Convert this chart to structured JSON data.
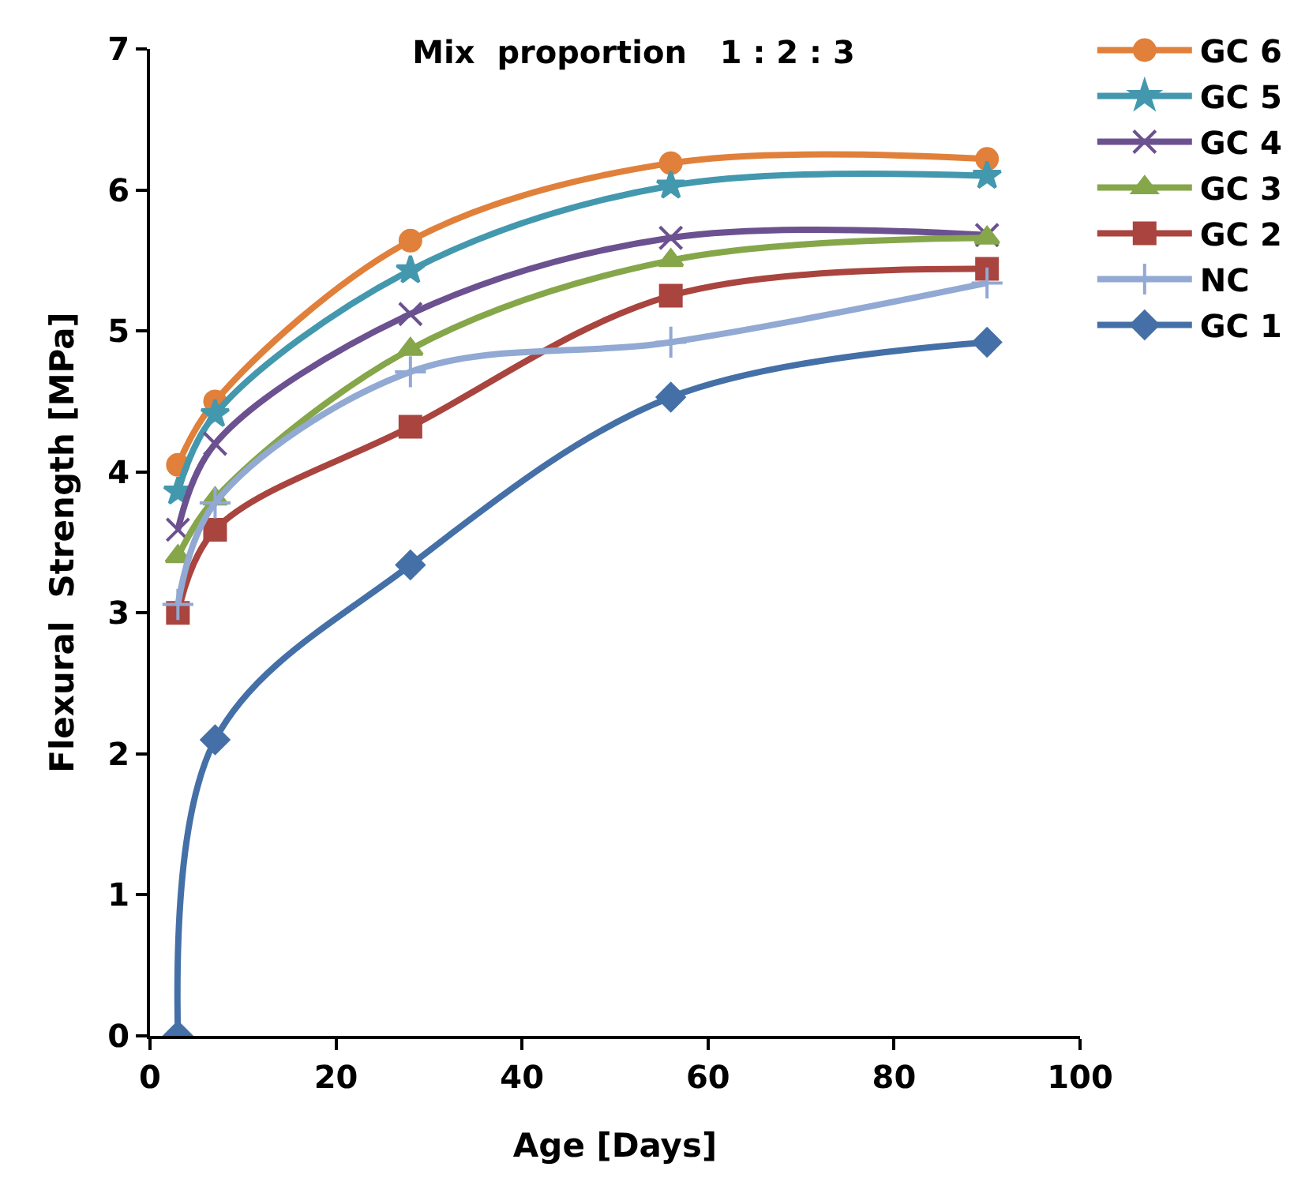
{
  "chart_data": {
    "type": "line",
    "title": "Mix  proportion   1 : 2 : 3",
    "xlabel": "Age [Days]",
    "ylabel": "Flexural  Strength [MPa]",
    "x": [
      3,
      7,
      28,
      56,
      90
    ],
    "xlim": [
      0,
      100
    ],
    "xticks": [
      0,
      20,
      40,
      60,
      80,
      100
    ],
    "ylim": [
      0,
      7
    ],
    "yticks": [
      0,
      1,
      2,
      3,
      4,
      5,
      6,
      7
    ],
    "legend": "top right",
    "line_style": "solid",
    "series": [
      {
        "name": "GC 6",
        "color": "#e0803a",
        "marker": "circle",
        "values": [
          4.05,
          4.5,
          5.64,
          6.19,
          6.22
        ]
      },
      {
        "name": "GC 5",
        "color": "#4398ae",
        "marker": "star",
        "values": [
          3.86,
          4.41,
          5.43,
          6.03,
          6.1
        ]
      },
      {
        "name": "GC 4",
        "color": "#6c5190",
        "marker": "cross",
        "values": [
          3.59,
          4.2,
          5.12,
          5.66,
          5.68
        ]
      },
      {
        "name": "GC 3",
        "color": "#86a64a",
        "marker": "triangle",
        "values": [
          3.4,
          3.81,
          4.87,
          5.5,
          5.66
        ]
      },
      {
        "name": "GC 2",
        "color": "#a9443f",
        "marker": "square",
        "values": [
          3.0,
          3.59,
          4.32,
          5.25,
          5.44
        ]
      },
      {
        "name": "NC",
        "color": "#91a9d3",
        "marker": "plus",
        "values": [
          3.06,
          3.78,
          4.71,
          4.92,
          5.34
        ]
      },
      {
        "name": "GC 1",
        "color": "#4470a7",
        "marker": "diamond",
        "values": [
          0,
          2.1,
          3.34,
          4.53,
          4.92
        ]
      }
    ]
  }
}
